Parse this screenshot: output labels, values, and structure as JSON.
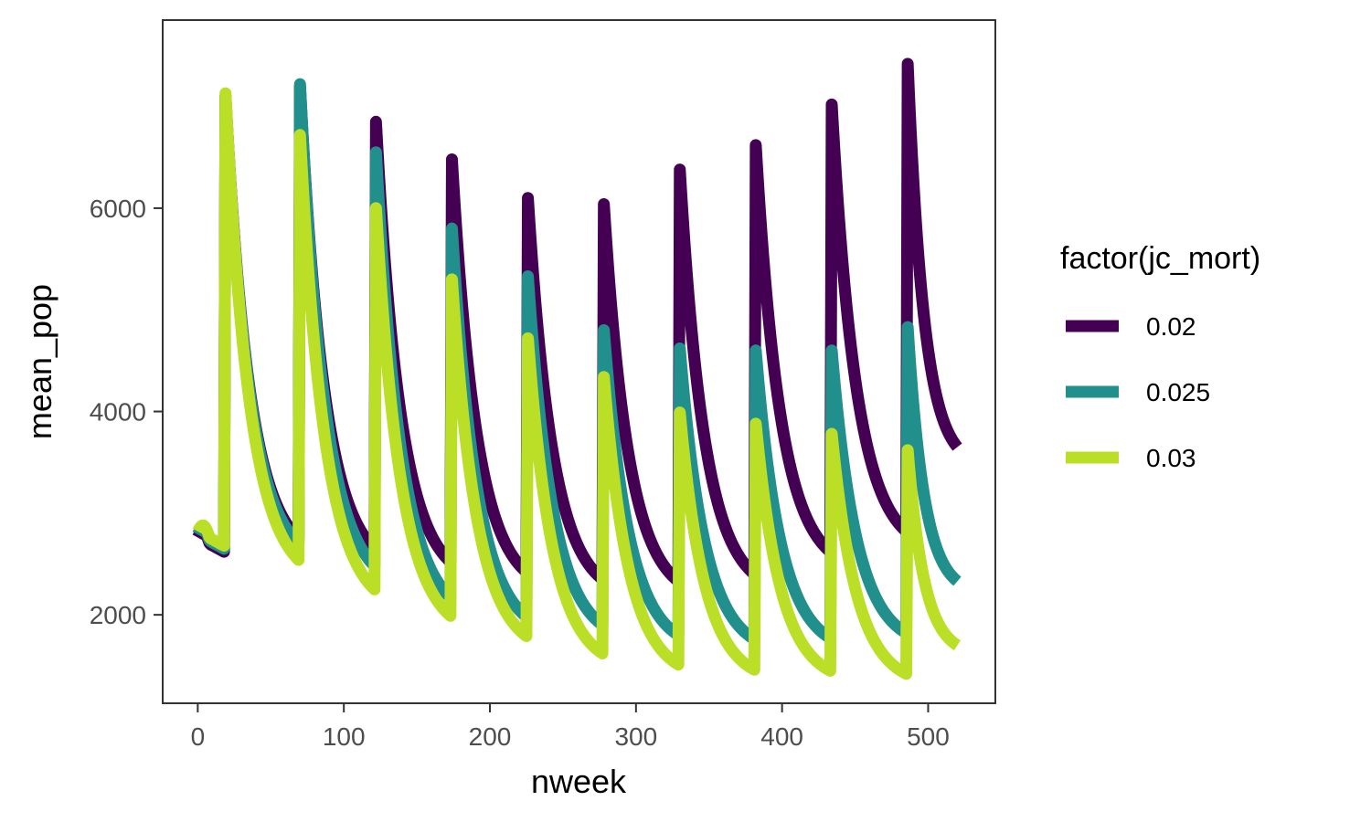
{
  "chart_data": {
    "type": "line",
    "xlabel": "nweek",
    "ylabel": "mean_pop",
    "xlim": [
      -24,
      546
    ],
    "ylim": [
      1130,
      7850
    ],
    "x_ticks": [
      0,
      100,
      200,
      300,
      400,
      500
    ],
    "y_ticks": [
      2000,
      4000,
      6000
    ],
    "grid": false,
    "legend": {
      "title": "factor(jc_mort)",
      "position": "right"
    },
    "peak_weeks": [
      19,
      70,
      122,
      174,
      226,
      278,
      330,
      382,
      434,
      486
    ],
    "series": [
      {
        "name": "0.02",
        "color": "#440154",
        "start": 2760,
        "pre_peak_low": 2620,
        "peaks": [
          7100,
          7200,
          6850,
          6480,
          6100,
          6040,
          6380,
          6620,
          7020,
          7420
        ],
        "troughs": [
          2750,
          2650,
          2520,
          2420,
          2350,
          2330,
          2400,
          2620,
          2820,
          3650
        ]
      },
      {
        "name": "0.025",
        "color": "#21908C",
        "start": 2790,
        "pre_peak_low": 2650,
        "peaks": [
          7100,
          7220,
          6550,
          5800,
          5330,
          4800,
          4620,
          4600,
          4600,
          4830
        ],
        "troughs": [
          2700,
          2480,
          2170,
          1980,
          1900,
          1800,
          1760,
          1770,
          1820,
          2330
        ]
      },
      {
        "name": "0.03",
        "color": "#BBDF27",
        "start": 2820,
        "pre_peak_low": 2680,
        "peaks": [
          7130,
          6720,
          6000,
          5300,
          4720,
          4340,
          3990,
          3880,
          3780,
          3620
        ],
        "troughs": [
          2540,
          2250,
          1990,
          1790,
          1620,
          1510,
          1460,
          1450,
          1420,
          1700
        ]
      }
    ]
  }
}
